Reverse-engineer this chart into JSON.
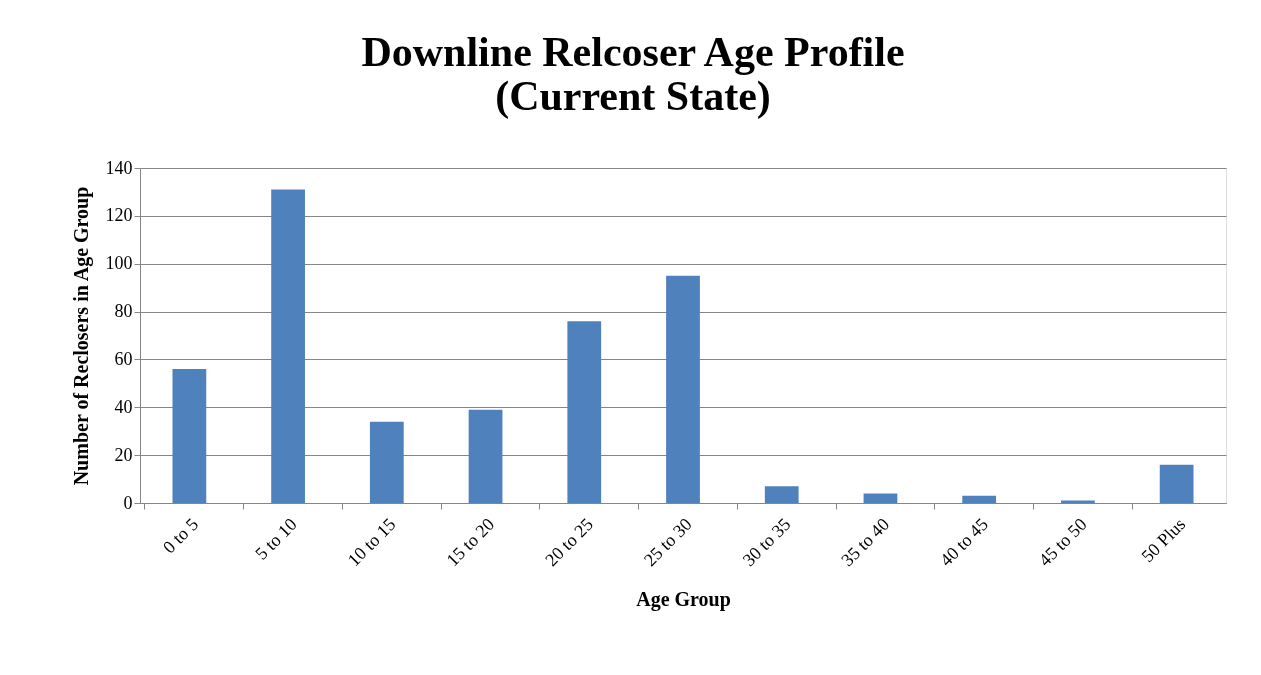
{
  "chart_data": {
    "type": "bar",
    "title": [
      "Downline Relcoser Age Profile",
      "(Current State)"
    ],
    "xlabel": "Age Group",
    "ylabel": "Number of Reclosers in Age Group",
    "categories": [
      "0 to 5",
      "5 to 10",
      "10 to 15",
      "15 to 20",
      "20 to 25",
      "25 to 30",
      "30 to 35",
      "35 to 40",
      "40 to 45",
      "45 to 50",
      "50 Plus"
    ],
    "values": [
      56,
      131,
      34,
      39,
      76,
      95,
      7,
      4,
      3,
      1,
      16
    ],
    "color": "#4f81bd",
    "ylim": [
      0,
      140
    ],
    "yticks": [
      0,
      20,
      40,
      60,
      80,
      100,
      120,
      140
    ],
    "grid": "y"
  }
}
